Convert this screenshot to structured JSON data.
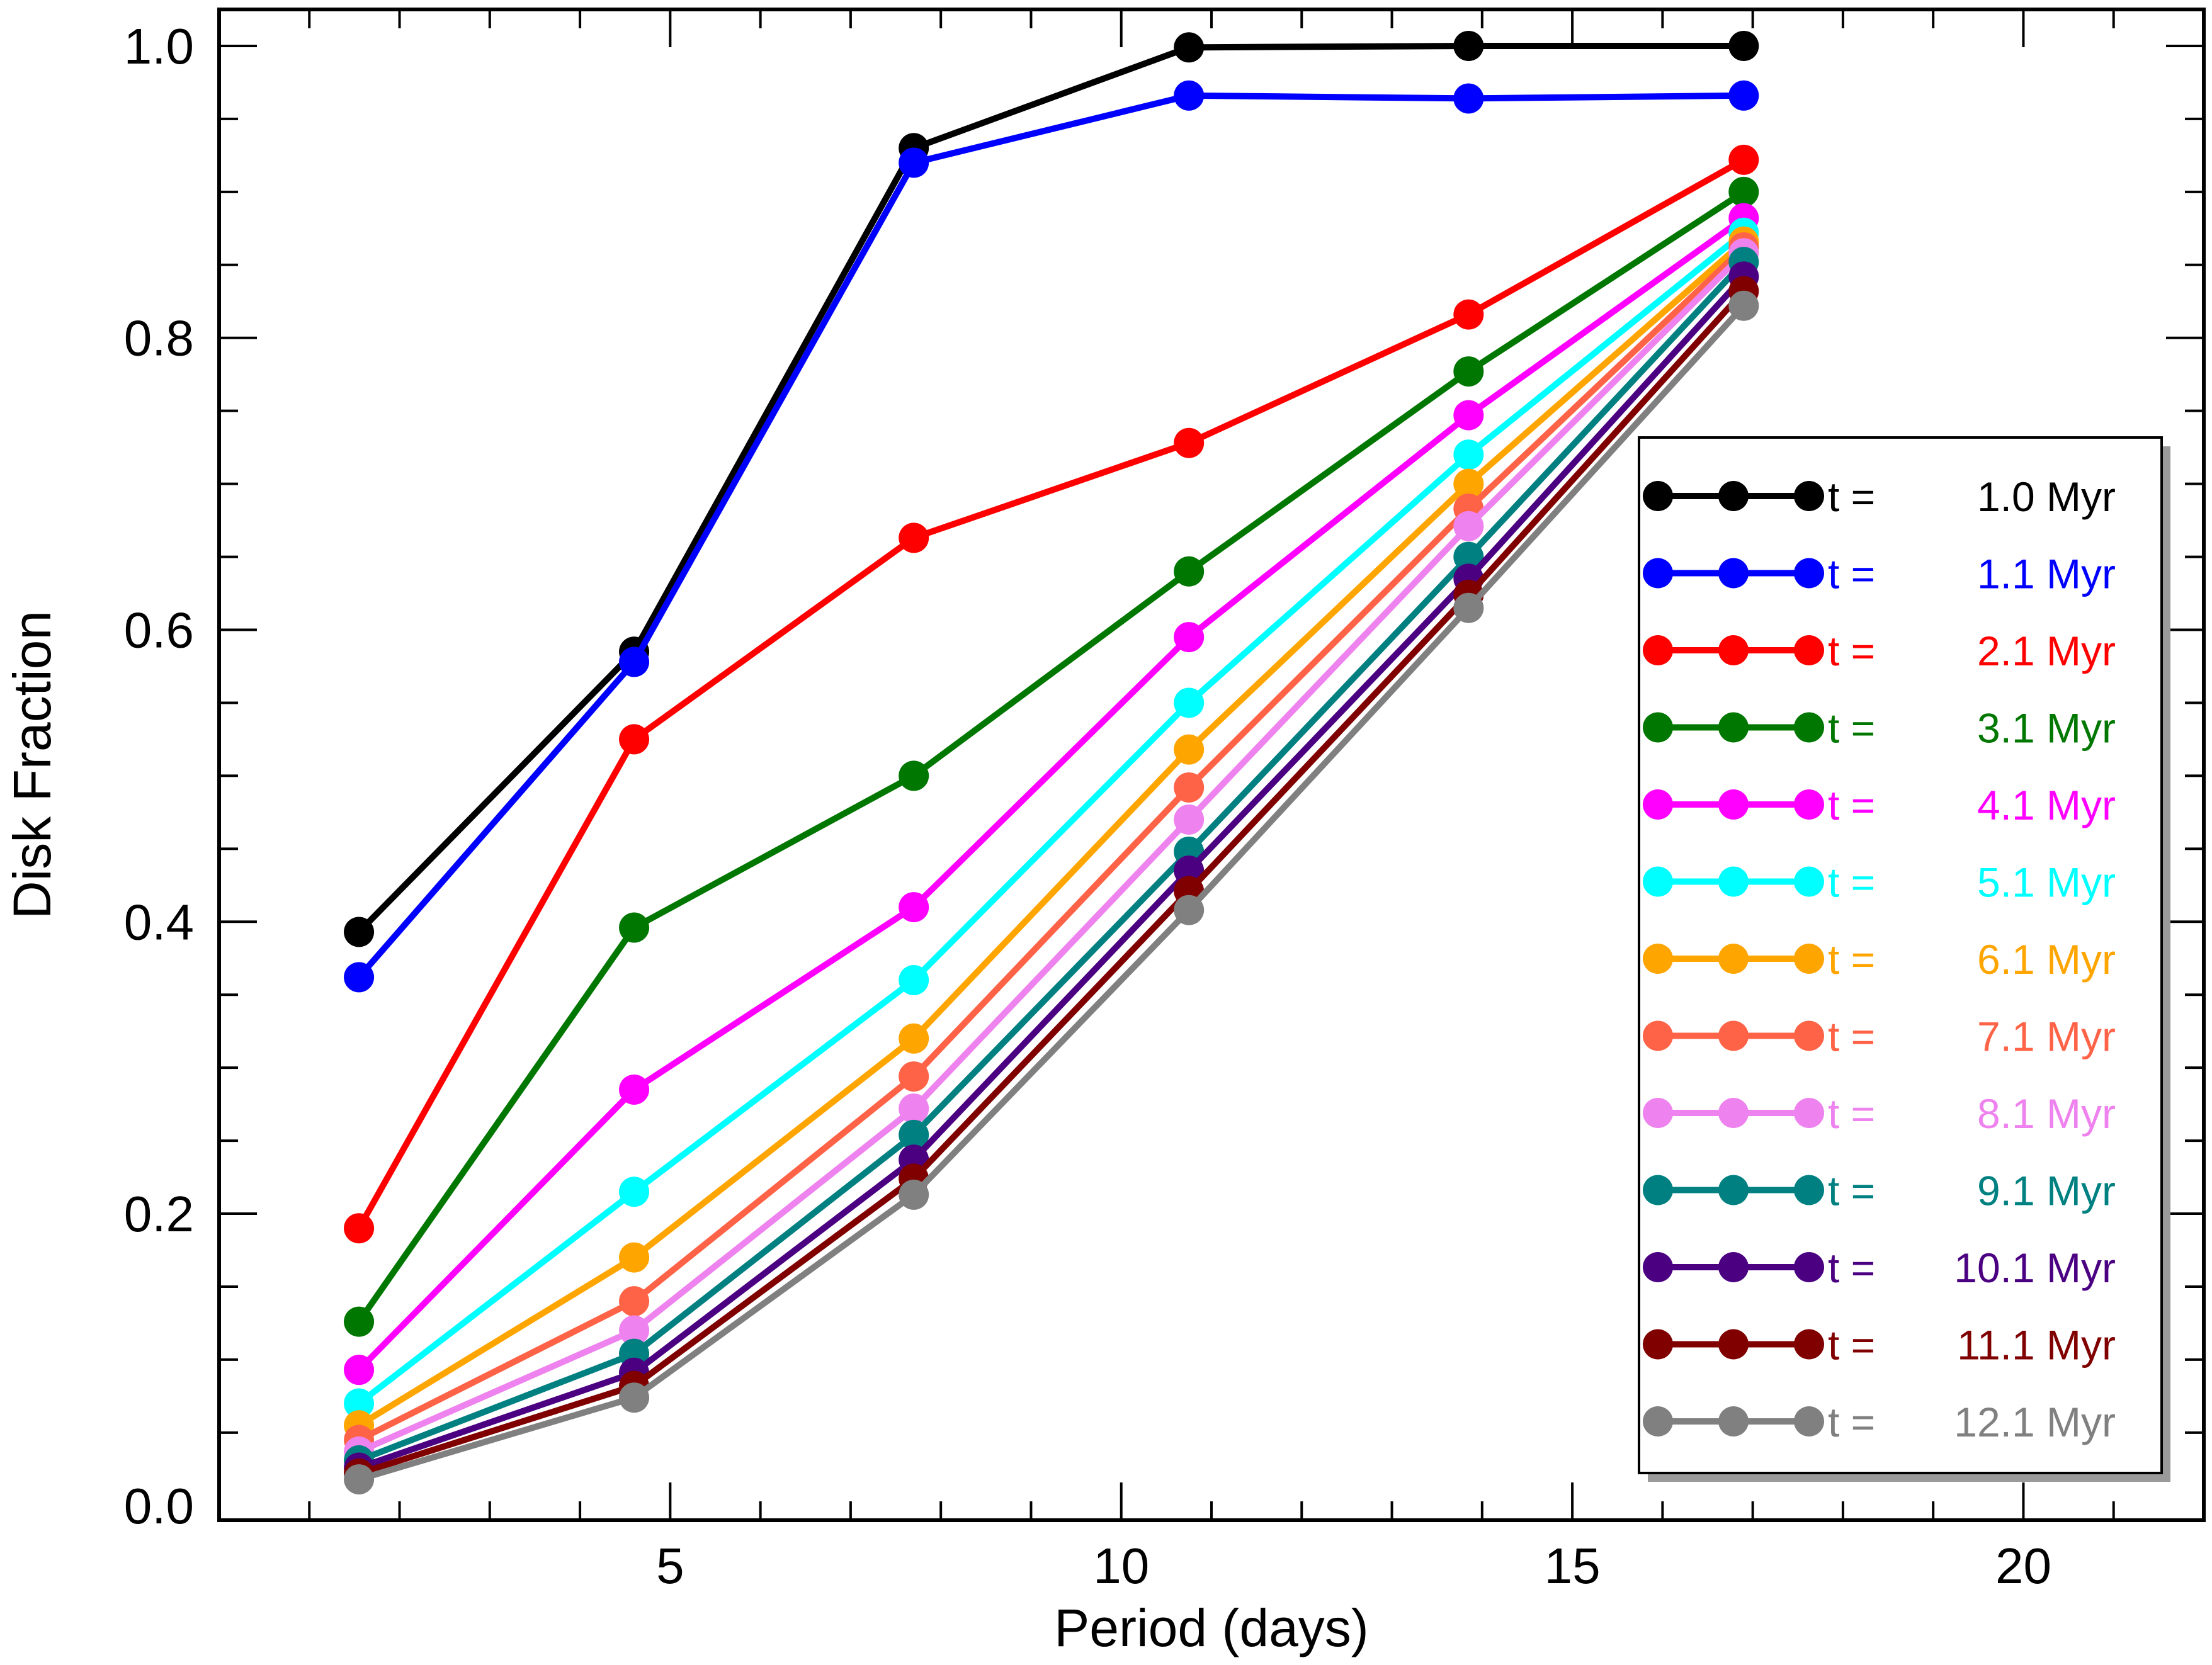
{
  "chart_data": {
    "type": "line",
    "title": "",
    "xlabel": "Period (days)",
    "ylabel": "Disk Fraction",
    "xlim": [
      0.0,
      22.0
    ],
    "ylim": [
      -0.01,
      1.025
    ],
    "xticks": [
      5,
      10,
      15,
      20
    ],
    "xtick_labels": [
      "5",
      "10",
      "15",
      "20"
    ],
    "yticks": [
      0.0,
      0.2,
      0.4,
      0.6,
      0.8,
      1.0
    ],
    "ytick_labels": [
      "0.0",
      "0.2",
      "0.4",
      "0.6",
      "0.8",
      "1.0"
    ],
    "x": [
      1.55,
      4.6,
      7.7,
      10.75,
      13.85,
      16.9
    ],
    "legend_position": "right",
    "legend_prefix": "t = ",
    "series": [
      {
        "name": "1.0 Myr",
        "color": "#000000",
        "values": [
          0.393,
          0.585,
          0.93,
          0.999,
          1.0,
          1.0
        ]
      },
      {
        "name": "1.1 Myr",
        "color": "#0000ff",
        "values": [
          0.362,
          0.578,
          0.92,
          0.966,
          0.964,
          0.966
        ]
      },
      {
        "name": "2.1 Myr",
        "color": "#ff0000",
        "values": [
          0.19,
          0.525,
          0.663,
          0.728,
          0.816,
          0.922
        ]
      },
      {
        "name": "3.1 Myr",
        "color": "#007700",
        "values": [
          0.126,
          0.396,
          0.5,
          0.64,
          0.777,
          0.9
        ]
      },
      {
        "name": "4.1 Myr",
        "color": "#ff00ff",
        "values": [
          0.093,
          0.285,
          0.41,
          0.595,
          0.747,
          0.882
        ]
      },
      {
        "name": "5.1 Myr",
        "color": "#00ffff",
        "values": [
          0.07,
          0.215,
          0.36,
          0.55,
          0.72,
          0.872
        ]
      },
      {
        "name": "6.1 Myr",
        "color": "#ffa500",
        "values": [
          0.055,
          0.17,
          0.32,
          0.518,
          0.7,
          0.866
        ]
      },
      {
        "name": "7.1 Myr",
        "color": "#ff6347",
        "values": [
          0.045,
          0.14,
          0.294,
          0.492,
          0.683,
          0.862
        ]
      },
      {
        "name": "8.1 Myr",
        "color": "#ee82ee",
        "values": [
          0.037,
          0.12,
          0.272,
          0.47,
          0.671,
          0.858
        ]
      },
      {
        "name": "9.1 Myr",
        "color": "#008080",
        "values": [
          0.031,
          0.104,
          0.254,
          0.448,
          0.65,
          0.852
        ]
      },
      {
        "name": "10.1 Myr",
        "color": "#4b0082",
        "values": [
          0.026,
          0.091,
          0.237,
          0.435,
          0.635,
          0.842
        ]
      },
      {
        "name": "11.1 Myr",
        "color": "#800000",
        "values": [
          0.022,
          0.082,
          0.224,
          0.421,
          0.624,
          0.832
        ]
      },
      {
        "name": "12.1 Myr",
        "color": "#808080",
        "values": [
          0.018,
          0.074,
          0.213,
          0.408,
          0.615,
          0.822
        ]
      }
    ]
  }
}
